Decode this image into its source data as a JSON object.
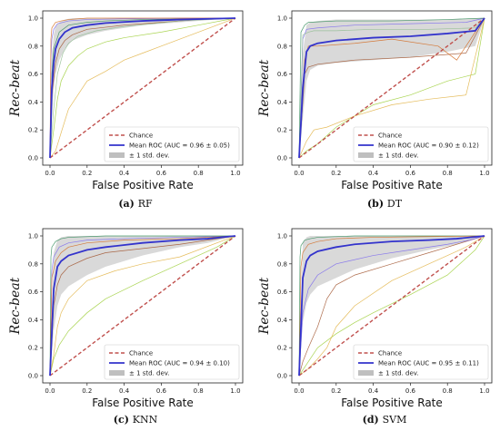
{
  "chart_data": [
    {
      "type": "line",
      "caption_letter": "(a)",
      "caption_name": "RF",
      "xlabel": "False Positive Rate",
      "ylabel": "Rec-beat",
      "xlim": [
        0,
        1.0
      ],
      "ylim": [
        0,
        1.0
      ],
      "x_ticks": [
        "0.0",
        "0.2",
        "0.4",
        "0.6",
        "0.8",
        "1.0"
      ],
      "y_ticks": [
        "0.0",
        "0.2",
        "0.4",
        "0.6",
        "0.8",
        "1.0"
      ],
      "legend_position": "bottom-right",
      "legend": [
        "Chance",
        "Mean ROC (AUC = 0.96 ± 0.05)",
        "± 1 std. dev."
      ],
      "series": [
        {
          "role": "chance",
          "x": [
            0,
            1
          ],
          "y": [
            0,
            1
          ]
        },
        {
          "role": "mean",
          "x": [
            0,
            0.01,
            0.02,
            0.03,
            0.05,
            0.08,
            0.12,
            0.2,
            0.3,
            0.5,
            0.7,
            1.0
          ],
          "y": [
            0,
            0.5,
            0.68,
            0.78,
            0.85,
            0.9,
            0.93,
            0.95,
            0.965,
            0.98,
            0.99,
            1.0
          ]
        },
        {
          "role": "band",
          "x": [
            0,
            0.01,
            0.02,
            0.03,
            0.05,
            0.08,
            0.12,
            0.2,
            0.3,
            0.5,
            0.7,
            1.0
          ],
          "upper": [
            0.05,
            0.72,
            0.88,
            0.94,
            0.97,
            0.99,
            1,
            1,
            1,
            1,
            1,
            1
          ],
          "lower": [
            0,
            0.3,
            0.48,
            0.6,
            0.7,
            0.78,
            0.84,
            0.88,
            0.91,
            0.95,
            0.97,
            1.0
          ]
        },
        {
          "role": "fold",
          "x": [
            0,
            0.02,
            0.04,
            0.06,
            0.1,
            0.15,
            0.2,
            0.3,
            0.4,
            0.6,
            0.8,
            1.0
          ],
          "y": [
            0,
            0.2,
            0.42,
            0.55,
            0.66,
            0.73,
            0.78,
            0.83,
            0.86,
            0.9,
            0.95,
            1.0
          ]
        },
        {
          "role": "fold",
          "x": [
            0,
            0.03,
            0.06,
            0.1,
            0.15,
            0.2,
            0.3,
            0.4,
            0.5,
            0.6,
            0.8,
            1.0
          ],
          "y": [
            0,
            0.05,
            0.18,
            0.35,
            0.45,
            0.55,
            0.62,
            0.7,
            0.75,
            0.8,
            0.9,
            1.0
          ]
        },
        {
          "role": "fold",
          "x": [
            0,
            0.01,
            0.03,
            0.05,
            0.08,
            0.12,
            0.2,
            0.4,
            0.6,
            0.8,
            1.0
          ],
          "y": [
            0,
            0.45,
            0.68,
            0.78,
            0.84,
            0.88,
            0.92,
            0.95,
            0.97,
            0.99,
            1.0
          ]
        },
        {
          "role": "fold",
          "x": [
            0,
            0.005,
            0.01,
            0.02,
            0.04,
            0.1,
            0.2,
            0.4,
            0.7,
            1.0
          ],
          "y": [
            0,
            0.72,
            0.85,
            0.92,
            0.96,
            0.98,
            0.99,
            0.995,
            1.0,
            1.0
          ]
        },
        {
          "role": "fold",
          "x": [
            0,
            0.01,
            0.02,
            0.05,
            0.1,
            0.2,
            0.3,
            0.5,
            1.0
          ],
          "y": [
            0,
            0.6,
            0.78,
            0.9,
            0.95,
            0.97,
            0.98,
            0.99,
            1.0
          ]
        },
        {
          "role": "fold",
          "x": [
            0,
            0.005,
            0.01,
            0.03,
            0.06,
            0.1,
            0.2,
            0.5,
            1.0
          ],
          "y": [
            0,
            0.85,
            0.93,
            0.97,
            0.98,
            0.99,
            1.0,
            1.0,
            1.0
          ]
        },
        {
          "role": "fold",
          "x": [
            0,
            0.02,
            0.04,
            0.07,
            0.1,
            0.15,
            0.25,
            0.4,
            0.7,
            1.0
          ],
          "y": [
            0,
            0.35,
            0.6,
            0.75,
            0.82,
            0.87,
            0.91,
            0.94,
            0.98,
            1.0
          ]
        }
      ]
    },
    {
      "type": "line",
      "caption_letter": "(b)",
      "caption_name": "DT",
      "xlabel": "False Positive Rate",
      "ylabel": "Rec-beat",
      "xlim": [
        0,
        1.0
      ],
      "ylim": [
        0,
        1.0
      ],
      "x_ticks": [
        "0.0",
        "0.2",
        "0.4",
        "0.6",
        "0.8",
        "1.0"
      ],
      "y_ticks": [
        "0.0",
        "0.2",
        "0.4",
        "0.6",
        "0.8",
        "1.0"
      ],
      "legend_position": "bottom-right",
      "legend": [
        "Chance",
        "Mean ROC (AUC = 0.90 ± 0.12)",
        "± 1 std. dev."
      ],
      "series": [
        {
          "role": "chance",
          "x": [
            0,
            1
          ],
          "y": [
            0,
            1
          ]
        },
        {
          "role": "mean",
          "x": [
            0,
            0.02,
            0.04,
            0.06,
            0.1,
            0.2,
            0.4,
            0.6,
            0.8,
            0.95,
            1.0
          ],
          "y": [
            0,
            0.5,
            0.76,
            0.8,
            0.82,
            0.84,
            0.86,
            0.87,
            0.89,
            0.91,
            1.0
          ]
        },
        {
          "role": "band",
          "x": [
            0,
            0.02,
            0.04,
            0.06,
            0.1,
            0.2,
            0.4,
            0.6,
            0.8,
            0.95,
            1.0
          ],
          "upper": [
            0.05,
            0.75,
            0.95,
            0.97,
            0.98,
            0.99,
            0.99,
            0.99,
            0.99,
            1.0,
            1.0
          ],
          "lower": [
            0,
            0.28,
            0.55,
            0.63,
            0.66,
            0.68,
            0.7,
            0.72,
            0.76,
            0.8,
            1.0
          ]
        },
        {
          "role": "fold",
          "x": [
            0,
            0.04,
            0.1,
            0.2,
            0.4,
            0.6,
            0.8,
            0.95,
            1.0
          ],
          "y": [
            0,
            0.05,
            0.1,
            0.22,
            0.38,
            0.45,
            0.55,
            0.6,
            1.0
          ]
        },
        {
          "role": "fold",
          "x": [
            0,
            0.04,
            0.08,
            0.15,
            0.3,
            0.5,
            0.7,
            0.9,
            1.0
          ],
          "y": [
            0,
            0.12,
            0.2,
            0.22,
            0.3,
            0.38,
            0.42,
            0.45,
            1.0
          ]
        },
        {
          "role": "fold",
          "x": [
            0,
            0.03,
            0.05,
            0.1,
            0.3,
            0.6,
            0.9,
            1.0
          ],
          "y": [
            0,
            0.6,
            0.65,
            0.67,
            0.7,
            0.72,
            0.75,
            1.0
          ]
        },
        {
          "role": "fold",
          "x": [
            0,
            0.02,
            0.04,
            0.1,
            0.3,
            0.6,
            0.9,
            1.0
          ],
          "y": [
            0,
            0.85,
            0.92,
            0.93,
            0.95,
            0.96,
            0.97,
            1.0
          ]
        },
        {
          "role": "fold",
          "x": [
            0,
            0.01,
            0.03,
            0.05,
            0.2,
            0.5,
            0.8,
            1.0
          ],
          "y": [
            0,
            0.9,
            0.95,
            0.97,
            0.98,
            0.98,
            0.99,
            1.0
          ]
        },
        {
          "role": "fold",
          "x": [
            0,
            0.03,
            0.05,
            0.1,
            0.3,
            0.5,
            0.75,
            0.85,
            1.0
          ],
          "y": [
            0,
            0.7,
            0.8,
            0.8,
            0.82,
            0.85,
            0.8,
            0.7,
            1.0
          ]
        },
        {
          "role": "fold",
          "x": [
            0,
            0.02,
            0.05,
            0.08,
            0.2,
            0.4,
            0.7,
            0.95,
            1.0
          ],
          "y": [
            0,
            0.88,
            0.9,
            0.91,
            0.91,
            0.92,
            0.92,
            0.93,
            1.0
          ]
        }
      ]
    },
    {
      "type": "line",
      "caption_letter": "(c)",
      "caption_name": "KNN",
      "xlabel": "False Positive Rate",
      "ylabel": "Rec-beat",
      "xlim": [
        0,
        1.0
      ],
      "ylim": [
        0,
        1.0
      ],
      "x_ticks": [
        "0.0",
        "0.2",
        "0.4",
        "0.6",
        "0.8",
        "1.0"
      ],
      "y_ticks": [
        "0.0",
        "0.2",
        "0.4",
        "0.6",
        "0.8",
        "1.0"
      ],
      "legend_position": "bottom-right",
      "legend": [
        "Chance",
        "Mean ROC (AUC = 0.94 ± 0.10)",
        "± 1 std. dev."
      ],
      "series": [
        {
          "role": "chance",
          "x": [
            0,
            1
          ],
          "y": [
            0,
            1
          ]
        },
        {
          "role": "mean",
          "x": [
            0,
            0.02,
            0.04,
            0.06,
            0.1,
            0.2,
            0.3,
            0.5,
            0.7,
            0.85,
            1.0
          ],
          "y": [
            0,
            0.62,
            0.78,
            0.82,
            0.86,
            0.9,
            0.92,
            0.95,
            0.97,
            0.98,
            1.0
          ]
        },
        {
          "role": "band",
          "x": [
            0,
            0.02,
            0.04,
            0.06,
            0.1,
            0.2,
            0.3,
            0.5,
            0.7,
            0.85,
            1.0
          ],
          "upper": [
            0.05,
            0.88,
            0.97,
            0.99,
            1.0,
            1.0,
            1.0,
            1.0,
            1.0,
            1.0,
            1.0
          ],
          "lower": [
            0,
            0.32,
            0.5,
            0.58,
            0.64,
            0.72,
            0.78,
            0.86,
            0.92,
            0.95,
            1.0
          ]
        },
        {
          "role": "fold",
          "x": [
            0,
            0.02,
            0.05,
            0.1,
            0.2,
            0.3,
            0.5,
            0.7,
            0.9,
            1.0
          ],
          "y": [
            0,
            0.12,
            0.22,
            0.32,
            0.45,
            0.55,
            0.68,
            0.8,
            0.92,
            1.0
          ]
        },
        {
          "role": "fold",
          "x": [
            0,
            0.02,
            0.04,
            0.06,
            0.1,
            0.2,
            0.35,
            0.5,
            0.7,
            1.0
          ],
          "y": [
            0,
            0.15,
            0.35,
            0.45,
            0.55,
            0.68,
            0.75,
            0.8,
            0.85,
            1.0
          ]
        },
        {
          "role": "fold",
          "x": [
            0,
            0.02,
            0.04,
            0.06,
            0.1,
            0.2,
            0.3,
            0.5,
            0.7,
            1.0
          ],
          "y": [
            0,
            0.5,
            0.65,
            0.72,
            0.78,
            0.84,
            0.88,
            0.91,
            0.94,
            1.0
          ]
        },
        {
          "role": "fold",
          "x": [
            0,
            0.01,
            0.02,
            0.05,
            0.1,
            0.2,
            0.4,
            0.7,
            1.0
          ],
          "y": [
            0,
            0.75,
            0.85,
            0.92,
            0.95,
            0.97,
            0.98,
            0.99,
            1.0
          ]
        },
        {
          "role": "fold",
          "x": [
            0,
            0.005,
            0.01,
            0.03,
            0.06,
            0.1,
            0.3,
            0.6,
            1.0
          ],
          "y": [
            0,
            0.85,
            0.92,
            0.96,
            0.98,
            0.99,
            1.0,
            1.0,
            1.0
          ]
        },
        {
          "role": "fold",
          "x": [
            0,
            0.01,
            0.03,
            0.06,
            0.1,
            0.2,
            0.4,
            0.7,
            1.0
          ],
          "y": [
            0,
            0.7,
            0.82,
            0.88,
            0.92,
            0.95,
            0.97,
            0.98,
            1.0
          ]
        }
      ]
    },
    {
      "type": "line",
      "caption_letter": "(d)",
      "caption_name": "SVM",
      "xlabel": "False Positive Rate",
      "ylabel": "Rec-beat",
      "xlim": [
        0,
        1.0
      ],
      "ylim": [
        0,
        1.0
      ],
      "x_ticks": [
        "0.0",
        "0.2",
        "0.4",
        "0.6",
        "0.8",
        "1.0"
      ],
      "y_ticks": [
        "0.0",
        "0.2",
        "0.4",
        "0.6",
        "0.8",
        "1.0"
      ],
      "legend_position": "bottom-right",
      "legend": [
        "Chance",
        "Mean ROC (AUC = 0.95 ± 0.11)",
        "± 1 std. dev."
      ],
      "series": [
        {
          "role": "chance",
          "x": [
            0,
            1
          ],
          "y": [
            0,
            1
          ]
        },
        {
          "role": "mean",
          "x": [
            0,
            0.02,
            0.04,
            0.06,
            0.1,
            0.2,
            0.3,
            0.5,
            0.7,
            0.85,
            1.0
          ],
          "y": [
            0,
            0.7,
            0.82,
            0.86,
            0.89,
            0.92,
            0.94,
            0.96,
            0.97,
            0.98,
            1.0
          ]
        },
        {
          "role": "band",
          "x": [
            0,
            0.02,
            0.04,
            0.06,
            0.1,
            0.2,
            0.3,
            0.5,
            0.7,
            0.85,
            1.0
          ],
          "upper": [
            0.05,
            0.95,
            0.99,
            1.0,
            1.0,
            1.0,
            1.0,
            1.0,
            1.0,
            1.0,
            1.0
          ],
          "lower": [
            0,
            0.38,
            0.52,
            0.58,
            0.64,
            0.7,
            0.76,
            0.84,
            0.9,
            0.94,
            1.0
          ]
        },
        {
          "role": "fold",
          "x": [
            0,
            0.05,
            0.1,
            0.2,
            0.3,
            0.4,
            0.6,
            0.8,
            0.95,
            1.0
          ],
          "y": [
            0,
            0.1,
            0.2,
            0.3,
            0.38,
            0.45,
            0.58,
            0.72,
            0.9,
            1.0
          ]
        },
        {
          "role": "fold",
          "x": [
            0,
            0.05,
            0.1,
            0.15,
            0.2,
            0.3,
            0.5,
            0.7,
            0.9,
            1.0
          ],
          "y": [
            0,
            0.05,
            0.12,
            0.2,
            0.35,
            0.5,
            0.68,
            0.8,
            0.92,
            1.0
          ]
        },
        {
          "role": "fold",
          "x": [
            0,
            0.02,
            0.05,
            0.1,
            0.15,
            0.2,
            0.3,
            0.5,
            0.7,
            1.0
          ],
          "y": [
            0,
            0.1,
            0.2,
            0.35,
            0.55,
            0.65,
            0.72,
            0.8,
            0.88,
            1.0
          ]
        },
        {
          "role": "fold",
          "x": [
            0,
            0.02,
            0.05,
            0.1,
            0.2,
            0.4,
            0.6,
            0.8,
            0.92,
            1.0
          ],
          "y": [
            0,
            0.45,
            0.62,
            0.72,
            0.8,
            0.86,
            0.9,
            0.94,
            0.97,
            1.0
          ]
        },
        {
          "role": "fold",
          "x": [
            0,
            0.005,
            0.01,
            0.03,
            0.06,
            0.1,
            0.3,
            0.6,
            1.0
          ],
          "y": [
            0,
            0.85,
            0.93,
            0.97,
            0.98,
            0.99,
            1.0,
            1.0,
            1.0
          ]
        },
        {
          "role": "fold",
          "x": [
            0,
            0.01,
            0.02,
            0.05,
            0.1,
            0.2,
            0.4,
            0.7,
            1.0
          ],
          "y": [
            0,
            0.78,
            0.88,
            0.94,
            0.96,
            0.98,
            0.99,
            0.995,
            1.0
          ]
        }
      ]
    }
  ],
  "colors": {
    "chance": "#c0504d",
    "mean": "#3333cc",
    "band": "#bfbfbf",
    "axes": "#222222",
    "folds": [
      "#9acd32",
      "#e0b040",
      "#a0522d",
      "#7b68ee",
      "#2e8b57",
      "#d2691e",
      "#8fbc8f",
      "#888888"
    ]
  }
}
